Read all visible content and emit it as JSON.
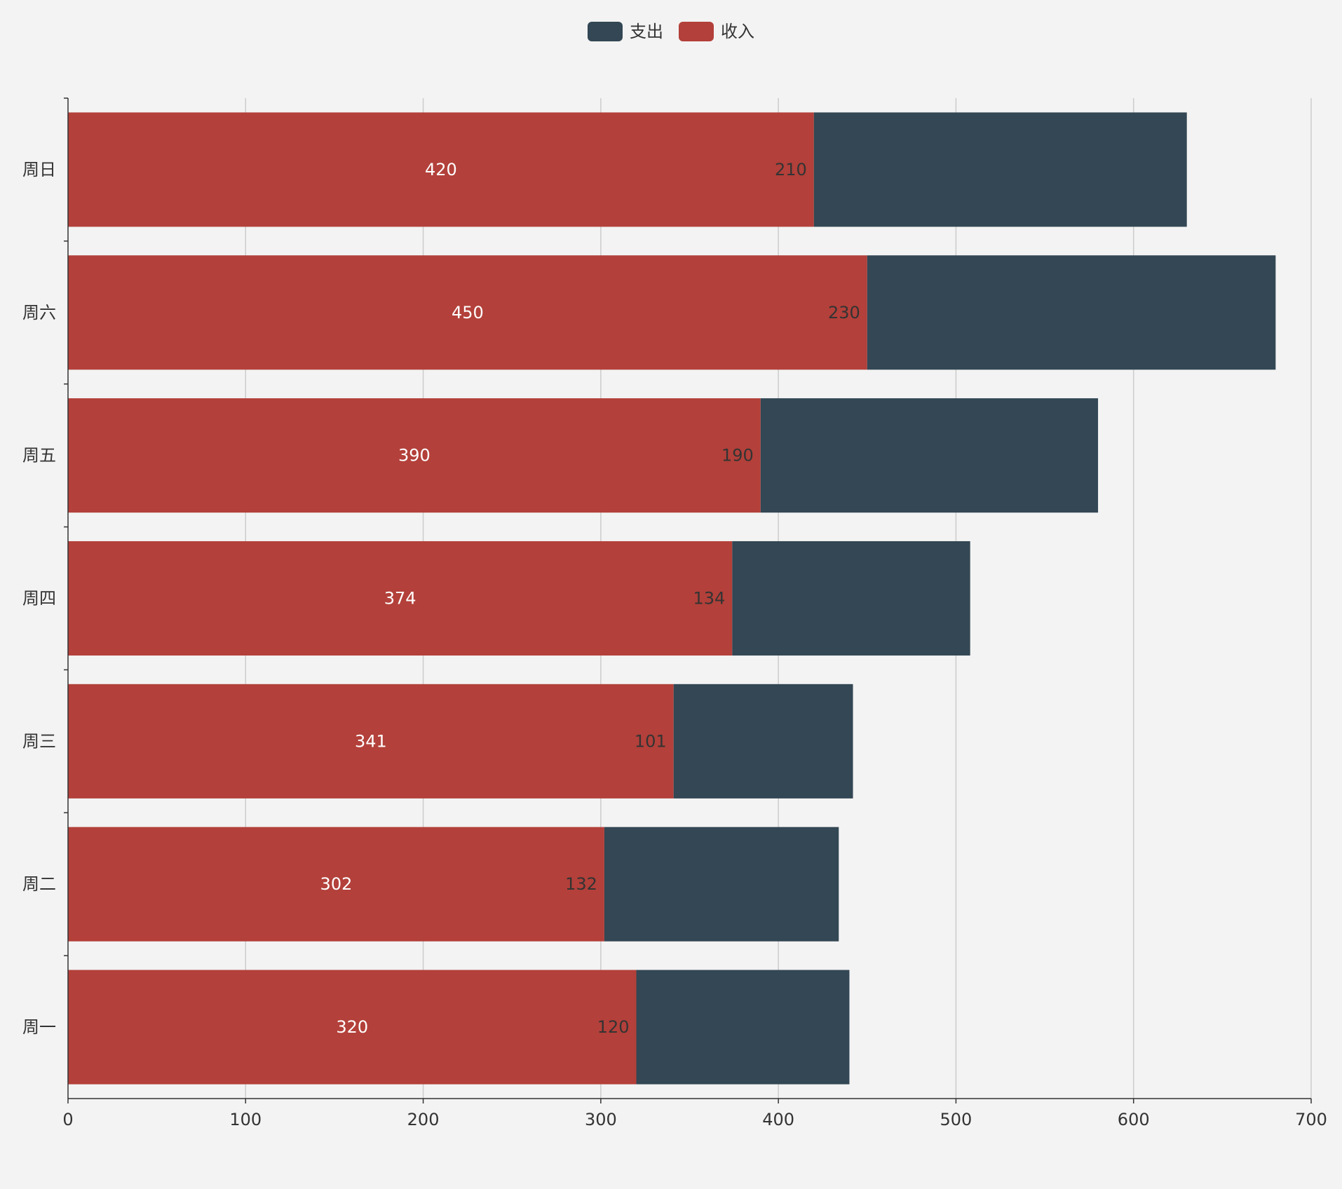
{
  "chart_data": {
    "type": "bar",
    "orientation": "horizontal",
    "stacked": true,
    "categories": [
      "周一",
      "周二",
      "周三",
      "周四",
      "周五",
      "周六",
      "周日"
    ],
    "series": [
      {
        "name": "收入",
        "color": "#b3403a",
        "label_color": "#ffffff",
        "values": [
          320,
          302,
          341,
          374,
          390,
          450,
          420
        ]
      },
      {
        "name": "支出",
        "color": "#334754",
        "label_color": "#333333",
        "values": [
          120,
          132,
          101,
          134,
          190,
          230,
          210
        ]
      }
    ],
    "legend": {
      "position": "top-center",
      "items": [
        {
          "name": "支出",
          "color": "#334754"
        },
        {
          "name": "收入",
          "color": "#b3403a"
        }
      ]
    },
    "xaxis": {
      "range": [
        0,
        700
      ],
      "ticks": [
        0,
        100,
        200,
        300,
        400,
        500,
        600,
        700
      ],
      "gridlines": true
    },
    "yaxis": {
      "order": "bottom-to-top"
    },
    "title": "",
    "xlabel": "",
    "ylabel": ""
  }
}
